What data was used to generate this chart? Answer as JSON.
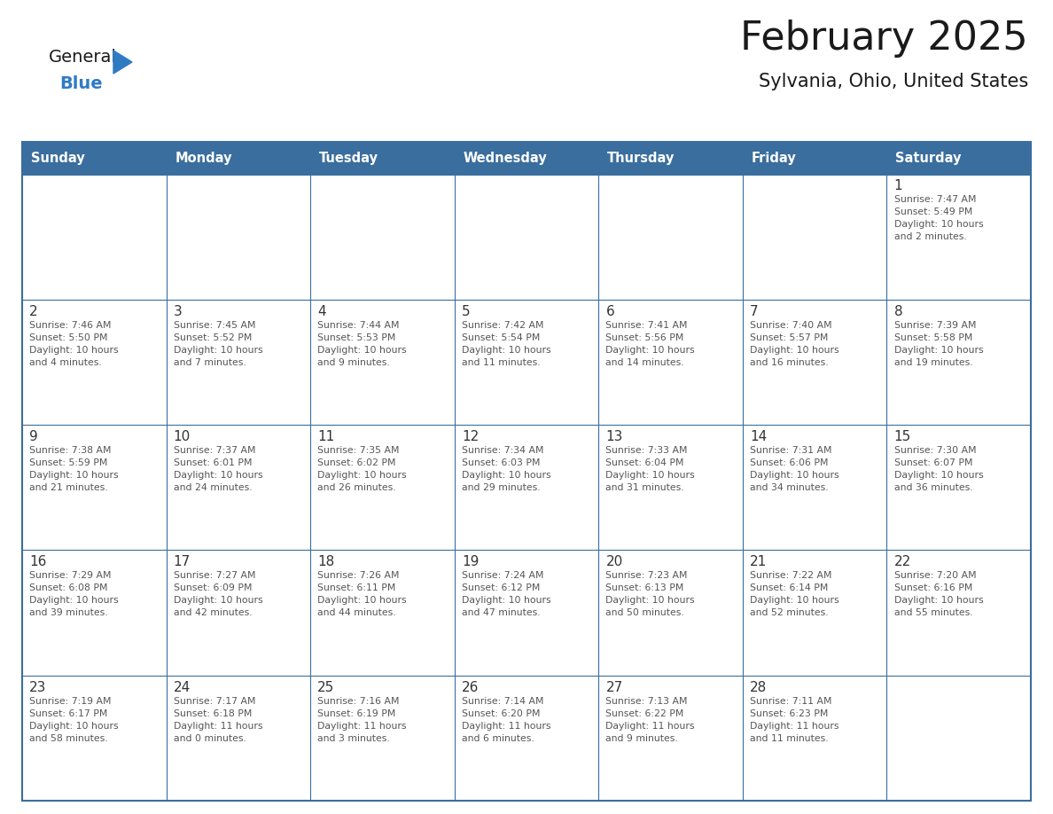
{
  "title": "February 2025",
  "subtitle": "Sylvania, Ohio, United States",
  "header_color": "#3a6e9e",
  "header_text_color": "#FFFFFF",
  "cell_bg_color": "#FFFFFF",
  "row_divider_color": "#3a6e9e",
  "border_color": "#3a6e9e",
  "day_number_color": "#333333",
  "info_text_color": "#555555",
  "days_of_week": [
    "Sunday",
    "Monday",
    "Tuesday",
    "Wednesday",
    "Thursday",
    "Friday",
    "Saturday"
  ],
  "weeks": [
    [
      {
        "day": null,
        "info": null
      },
      {
        "day": null,
        "info": null
      },
      {
        "day": null,
        "info": null
      },
      {
        "day": null,
        "info": null
      },
      {
        "day": null,
        "info": null
      },
      {
        "day": null,
        "info": null
      },
      {
        "day": "1",
        "info": "Sunrise: 7:47 AM\nSunset: 5:49 PM\nDaylight: 10 hours\nand 2 minutes."
      }
    ],
    [
      {
        "day": "2",
        "info": "Sunrise: 7:46 AM\nSunset: 5:50 PM\nDaylight: 10 hours\nand 4 minutes."
      },
      {
        "day": "3",
        "info": "Sunrise: 7:45 AM\nSunset: 5:52 PM\nDaylight: 10 hours\nand 7 minutes."
      },
      {
        "day": "4",
        "info": "Sunrise: 7:44 AM\nSunset: 5:53 PM\nDaylight: 10 hours\nand 9 minutes."
      },
      {
        "day": "5",
        "info": "Sunrise: 7:42 AM\nSunset: 5:54 PM\nDaylight: 10 hours\nand 11 minutes."
      },
      {
        "day": "6",
        "info": "Sunrise: 7:41 AM\nSunset: 5:56 PM\nDaylight: 10 hours\nand 14 minutes."
      },
      {
        "day": "7",
        "info": "Sunrise: 7:40 AM\nSunset: 5:57 PM\nDaylight: 10 hours\nand 16 minutes."
      },
      {
        "day": "8",
        "info": "Sunrise: 7:39 AM\nSunset: 5:58 PM\nDaylight: 10 hours\nand 19 minutes."
      }
    ],
    [
      {
        "day": "9",
        "info": "Sunrise: 7:38 AM\nSunset: 5:59 PM\nDaylight: 10 hours\nand 21 minutes."
      },
      {
        "day": "10",
        "info": "Sunrise: 7:37 AM\nSunset: 6:01 PM\nDaylight: 10 hours\nand 24 minutes."
      },
      {
        "day": "11",
        "info": "Sunrise: 7:35 AM\nSunset: 6:02 PM\nDaylight: 10 hours\nand 26 minutes."
      },
      {
        "day": "12",
        "info": "Sunrise: 7:34 AM\nSunset: 6:03 PM\nDaylight: 10 hours\nand 29 minutes."
      },
      {
        "day": "13",
        "info": "Sunrise: 7:33 AM\nSunset: 6:04 PM\nDaylight: 10 hours\nand 31 minutes."
      },
      {
        "day": "14",
        "info": "Sunrise: 7:31 AM\nSunset: 6:06 PM\nDaylight: 10 hours\nand 34 minutes."
      },
      {
        "day": "15",
        "info": "Sunrise: 7:30 AM\nSunset: 6:07 PM\nDaylight: 10 hours\nand 36 minutes."
      }
    ],
    [
      {
        "day": "16",
        "info": "Sunrise: 7:29 AM\nSunset: 6:08 PM\nDaylight: 10 hours\nand 39 minutes."
      },
      {
        "day": "17",
        "info": "Sunrise: 7:27 AM\nSunset: 6:09 PM\nDaylight: 10 hours\nand 42 minutes."
      },
      {
        "day": "18",
        "info": "Sunrise: 7:26 AM\nSunset: 6:11 PM\nDaylight: 10 hours\nand 44 minutes."
      },
      {
        "day": "19",
        "info": "Sunrise: 7:24 AM\nSunset: 6:12 PM\nDaylight: 10 hours\nand 47 minutes."
      },
      {
        "day": "20",
        "info": "Sunrise: 7:23 AM\nSunset: 6:13 PM\nDaylight: 10 hours\nand 50 minutes."
      },
      {
        "day": "21",
        "info": "Sunrise: 7:22 AM\nSunset: 6:14 PM\nDaylight: 10 hours\nand 52 minutes."
      },
      {
        "day": "22",
        "info": "Sunrise: 7:20 AM\nSunset: 6:16 PM\nDaylight: 10 hours\nand 55 minutes."
      }
    ],
    [
      {
        "day": "23",
        "info": "Sunrise: 7:19 AM\nSunset: 6:17 PM\nDaylight: 10 hours\nand 58 minutes."
      },
      {
        "day": "24",
        "info": "Sunrise: 7:17 AM\nSunset: 6:18 PM\nDaylight: 11 hours\nand 0 minutes."
      },
      {
        "day": "25",
        "info": "Sunrise: 7:16 AM\nSunset: 6:19 PM\nDaylight: 11 hours\nand 3 minutes."
      },
      {
        "day": "26",
        "info": "Sunrise: 7:14 AM\nSunset: 6:20 PM\nDaylight: 11 hours\nand 6 minutes."
      },
      {
        "day": "27",
        "info": "Sunrise: 7:13 AM\nSunset: 6:22 PM\nDaylight: 11 hours\nand 9 minutes."
      },
      {
        "day": "28",
        "info": "Sunrise: 7:11 AM\nSunset: 6:23 PM\nDaylight: 11 hours\nand 11 minutes."
      },
      {
        "day": null,
        "info": null
      }
    ]
  ],
  "logo_general_color": "#1a1a1a",
  "logo_blue_color": "#2E7BC4",
  "logo_triangle_color": "#2E7BC4"
}
